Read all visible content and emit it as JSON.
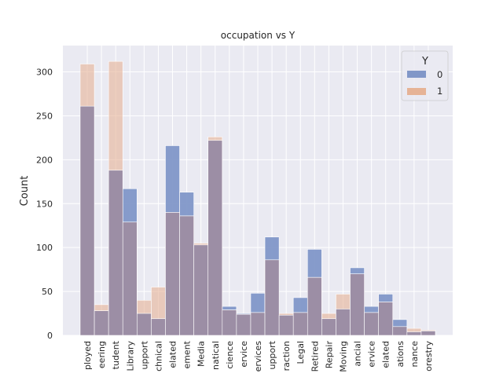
{
  "chart_data": {
    "type": "bar",
    "title": "occupation vs Y",
    "xlabel": "",
    "ylabel": "Count",
    "ylim": [
      0,
      330
    ],
    "yticks": [
      0,
      50,
      100,
      150,
      200,
      250,
      300
    ],
    "grid": true,
    "legend": {
      "title": "Y",
      "placement": "top-right"
    },
    "categories": [
      "ployed",
      "eering",
      "tudent",
      "Library",
      "upport",
      "chnical",
      "elated",
      "ement",
      "Media",
      "natical",
      "cience",
      "ervice",
      "ervices",
      "upport",
      "raction",
      "Legal",
      "Retired",
      "Repair",
      "Moving",
      "ancial",
      "ervice",
      "elated",
      "ations",
      "nance",
      "orestry"
    ],
    "series": [
      {
        "name": "0",
        "color": "#8197c8",
        "values": [
          261,
          28,
          188,
          167,
          25,
          19,
          216,
          163,
          103,
          222,
          33,
          25,
          48,
          112,
          23,
          43,
          98,
          19,
          30,
          77,
          33,
          47,
          18,
          4,
          5
        ]
      },
      {
        "name": "1",
        "color": "#e6b396",
        "values": [
          309,
          35,
          312,
          129,
          40,
          55,
          140,
          136,
          105,
          226,
          29,
          24,
          26,
          86,
          25,
          26,
          66,
          25,
          47,
          70,
          26,
          38,
          10,
          8,
          6
        ]
      }
    ]
  }
}
